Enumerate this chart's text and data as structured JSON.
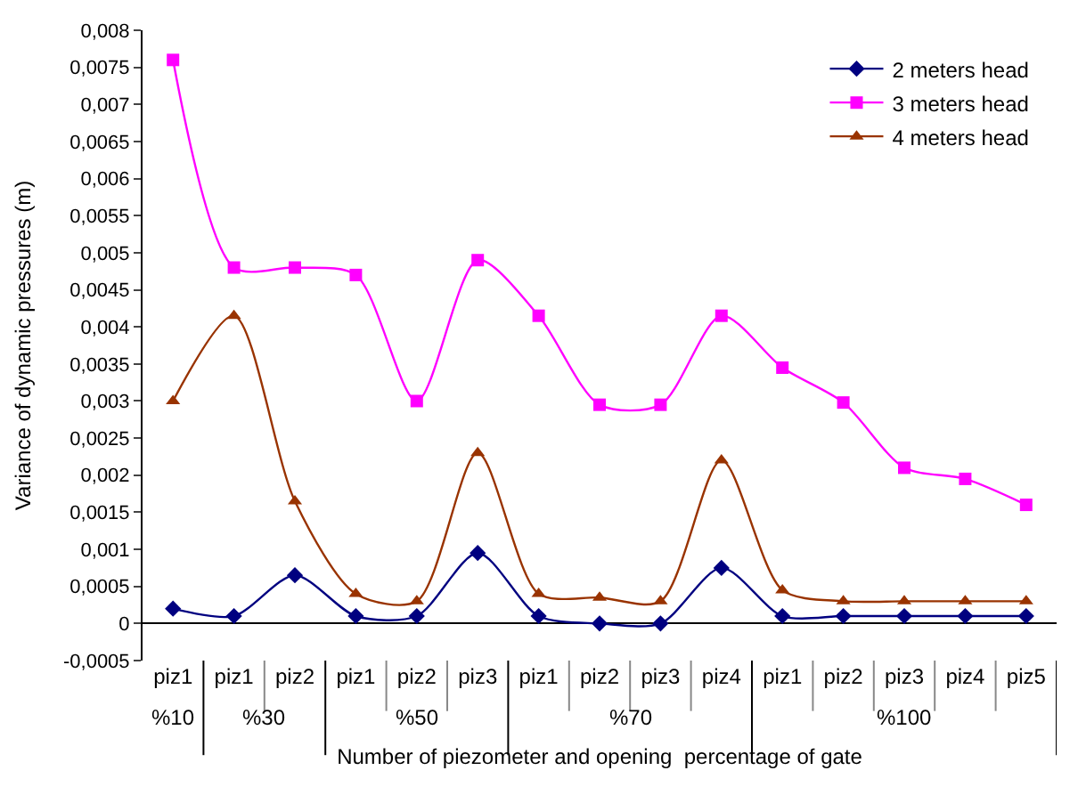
{
  "chart_data": {
    "type": "line",
    "ylabel": "Variance of dynamic pressures (m)",
    "xlabel": "Number of piezometer and opening  percentage of gate",
    "categories": [
      "piz1",
      "piz1",
      "piz2",
      "piz1",
      "piz2",
      "piz3",
      "piz1",
      "piz2",
      "piz3",
      "piz4",
      "piz1",
      "piz2",
      "piz3",
      "piz4",
      "piz5"
    ],
    "annotations": [
      "%10",
      "%30",
      "%50",
      "%70",
      "%100"
    ],
    "series": [
      {
        "name": "2 meters head",
        "color": "#000080",
        "marker": "diamond",
        "values": [
          0.0002,
          0.0001,
          0.00065,
          0.0001,
          0.0001,
          0.00095,
          0.0001,
          0.0,
          0.0,
          0.00075,
          0.0001,
          0.0001,
          0.0001,
          0.0001,
          0.0001
        ]
      },
      {
        "name": "3 meters head",
        "color": "#ff00ff",
        "marker": "square",
        "values": [
          0.0076,
          0.0048,
          0.0048,
          0.0047,
          0.003,
          0.0049,
          0.00415,
          0.00295,
          0.00295,
          0.00415,
          0.00345,
          0.00298,
          0.0021,
          0.00195,
          0.0016
        ]
      },
      {
        "name": "4 meters head",
        "color": "#993300",
        "marker": "triangle",
        "values": [
          0.003,
          0.00415,
          0.00165,
          0.0004,
          0.0003,
          0.0023,
          0.0004,
          0.00035,
          0.0003,
          0.0022,
          0.00045,
          0.0003,
          0.0003,
          0.0003,
          0.0003
        ]
      }
    ],
    "ylim": [
      -0.0005,
      0.008
    ],
    "yticks": [
      {
        "value": -0.0005,
        "label": "-0,0005"
      },
      0,
      {
        "value": 0.0005,
        "label": "0,0005"
      },
      {
        "value": 0.001,
        "label": "0,001"
      },
      {
        "value": 0.0015,
        "label": "0,0015"
      },
      {
        "value": 0.002,
        "label": "0,002"
      },
      {
        "value": 0.0025,
        "label": "0,0025"
      },
      {
        "value": 0.003,
        "label": "0,003"
      },
      {
        "value": 0.0035,
        "label": "0,0035"
      },
      {
        "value": 0.004,
        "label": "0,004"
      },
      {
        "value": 0.0045,
        "label": "0,0045"
      },
      {
        "value": 0.005,
        "label": "0,005"
      },
      {
        "value": 0.0055,
        "label": "0,0055"
      },
      {
        "value": 0.006,
        "label": "0,006"
      },
      {
        "value": 0.0065,
        "label": "0,0065"
      },
      {
        "value": 0.007,
        "label": "0,007"
      },
      {
        "value": 0.0075,
        "label": "0,0075"
      },
      {
        "value": 0.008,
        "label": "0,008"
      }
    ],
    "legend": "top right",
    "line_style": "solid"
  }
}
